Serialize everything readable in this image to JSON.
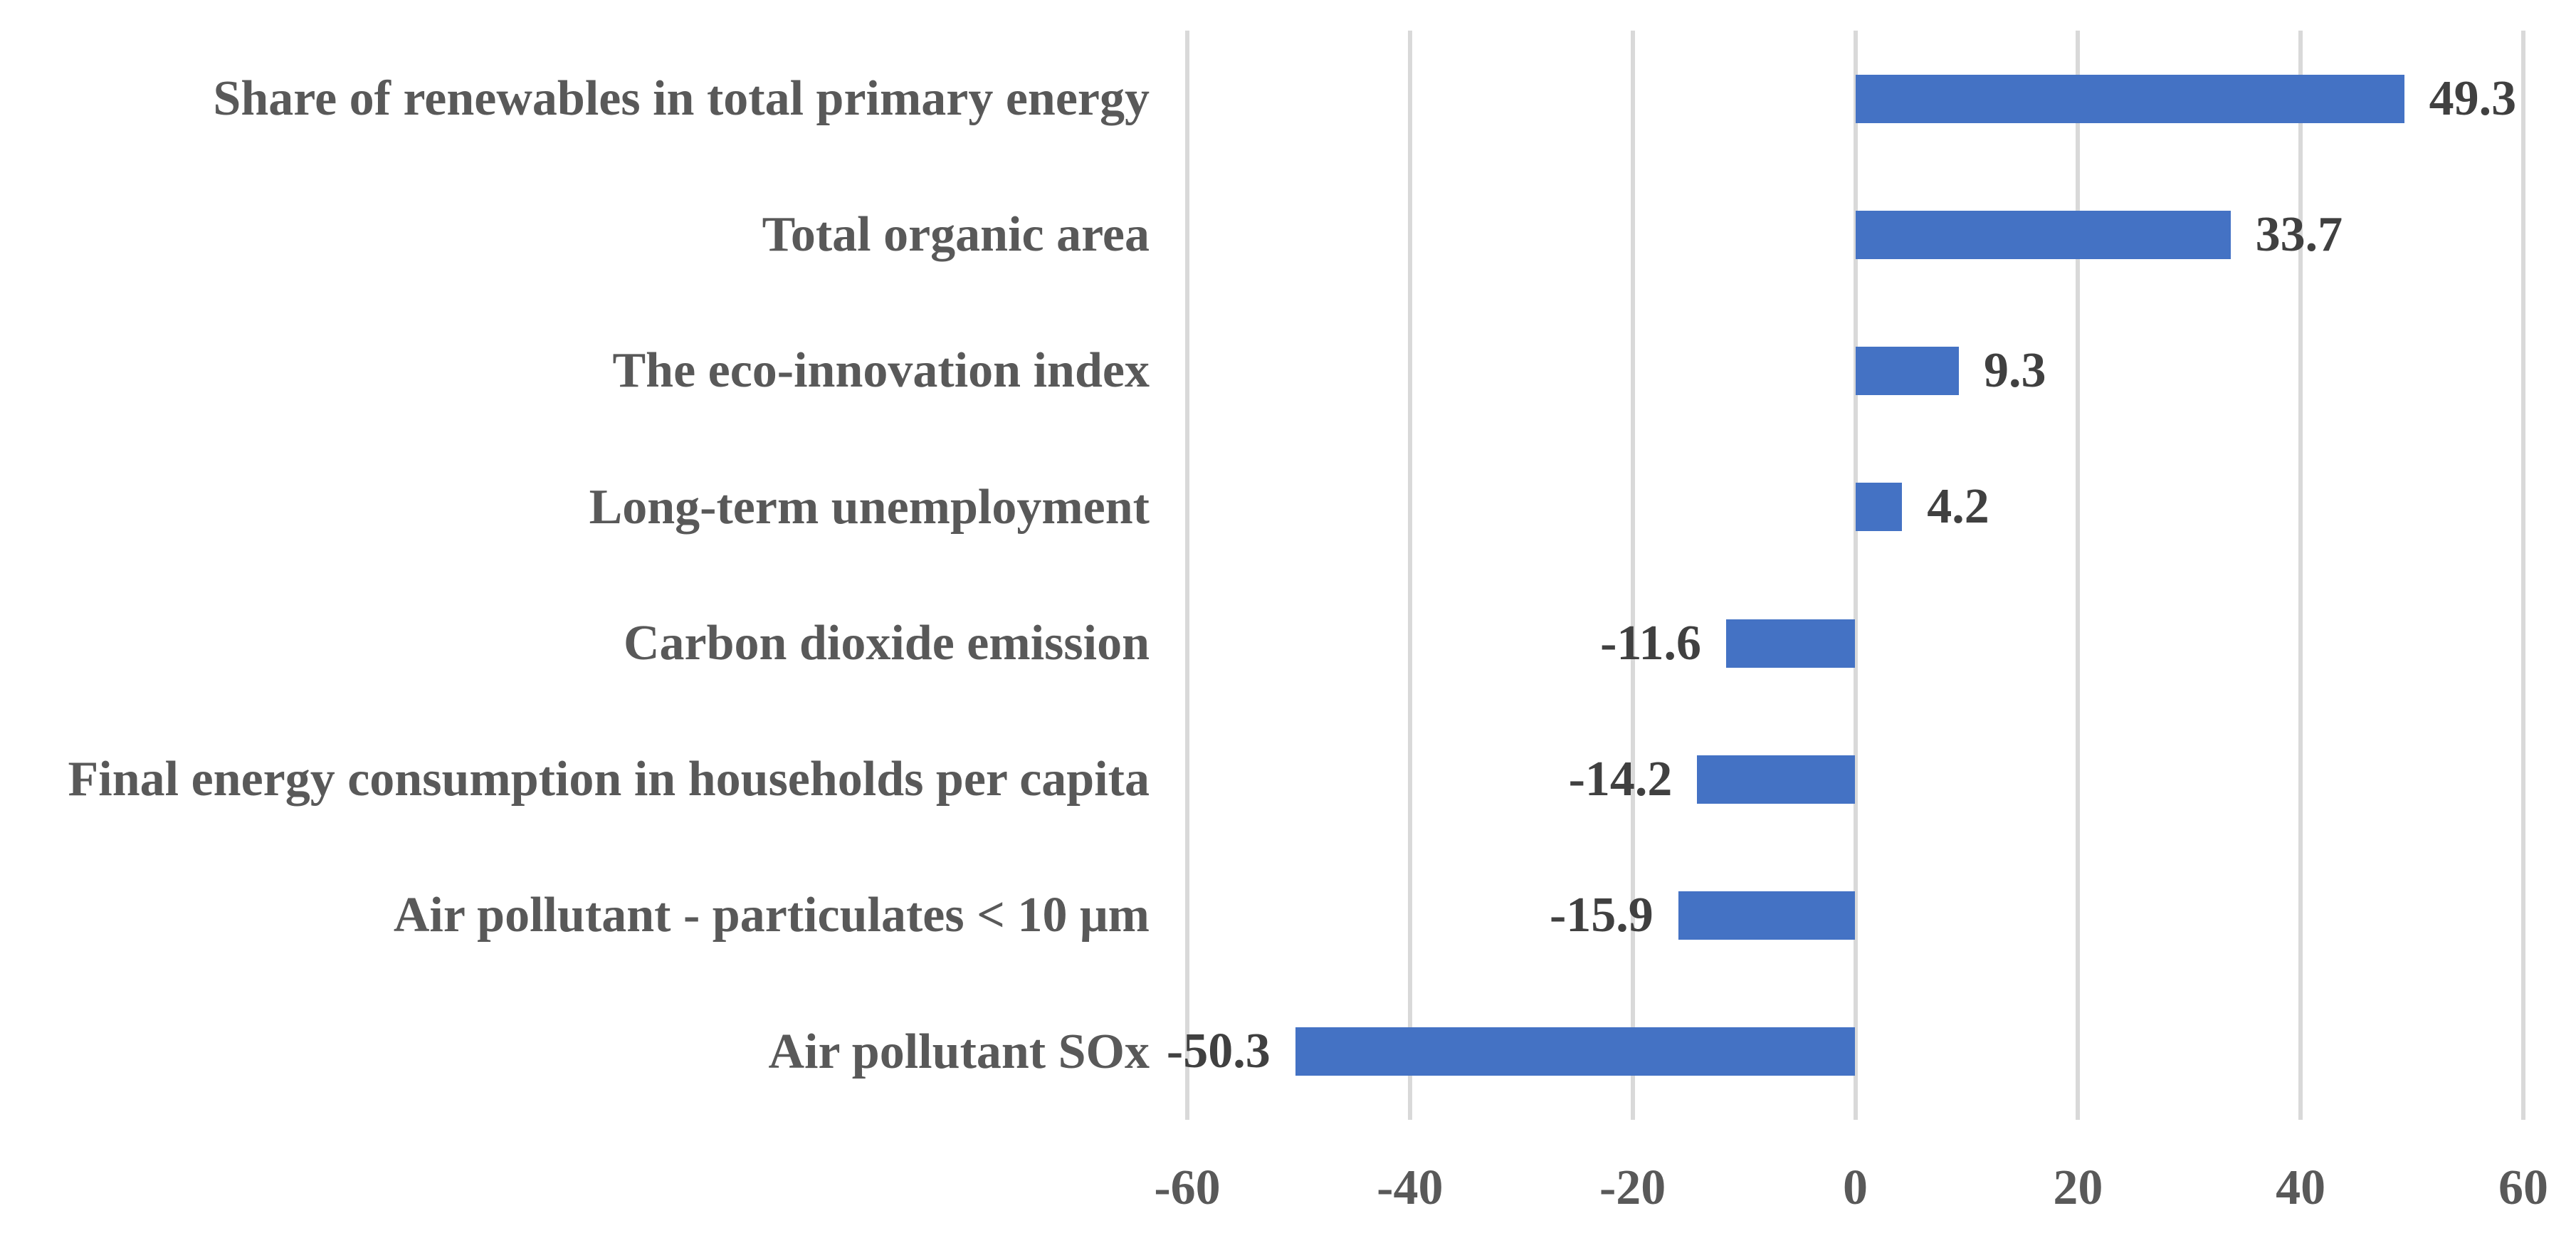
{
  "chart_data": {
    "type": "bar",
    "orientation": "horizontal",
    "title": "",
    "categories": [
      "Share of renewables in total primary energy",
      "Total organic area",
      "The eco-innovation index",
      "Long-term unemployment",
      "Carbon dioxide emission",
      "Final energy consumption in households per capita",
      "Air pollutant - particulates < 10 μm",
      "Air pollutant SOx"
    ],
    "values": [
      49.3,
      33.7,
      9.3,
      4.2,
      -11.6,
      -14.2,
      -15.9,
      -50.3
    ],
    "data_labels": [
      "49.3",
      "33.7",
      "9.3",
      "4.2",
      "-11.6",
      "-14.2",
      "-15.9",
      "-50.3"
    ],
    "x_axis": {
      "min": -60,
      "max": 60,
      "tick_interval": 20,
      "tick_labels": [
        "-60",
        "-40",
        "-20",
        "0",
        "20",
        "40",
        "60"
      ]
    },
    "ylabel": "",
    "xlabel": "",
    "legend": "none",
    "grid": "vertical",
    "colors": {
      "bar": "#4472C4",
      "gridline": "#D9D9D9",
      "category_label": "#595959",
      "tick_label": "#595959",
      "value_label": "#404040",
      "background": "#FFFFFF"
    }
  }
}
